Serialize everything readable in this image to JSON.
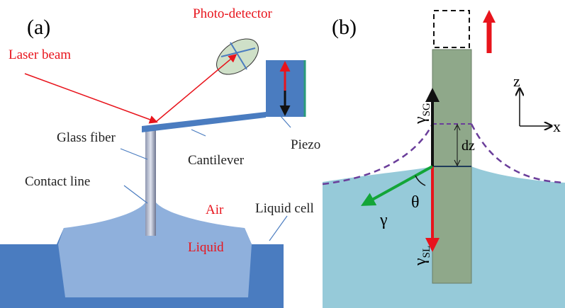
{
  "panel_a": {
    "label": "(a)",
    "photo_detector": "Photo-detector",
    "laser_beam": "Laser beam",
    "glass_fiber": "Glass fiber",
    "cantilever": "Cantilever",
    "piezo": "Piezo",
    "contact_line": "Contact line",
    "air": "Air",
    "liquid_cell": "Liquid cell",
    "liquid": "Liquid"
  },
  "panel_b": {
    "label": "(b)",
    "gamma_sg": {
      "symbol": "γ",
      "sub": "SG"
    },
    "dz": "dz",
    "theta": "θ",
    "gamma": "γ",
    "gamma_sl": {
      "symbol": "γ",
      "sub": "SL"
    },
    "axis_z": "z",
    "axis_x": "x"
  }
}
